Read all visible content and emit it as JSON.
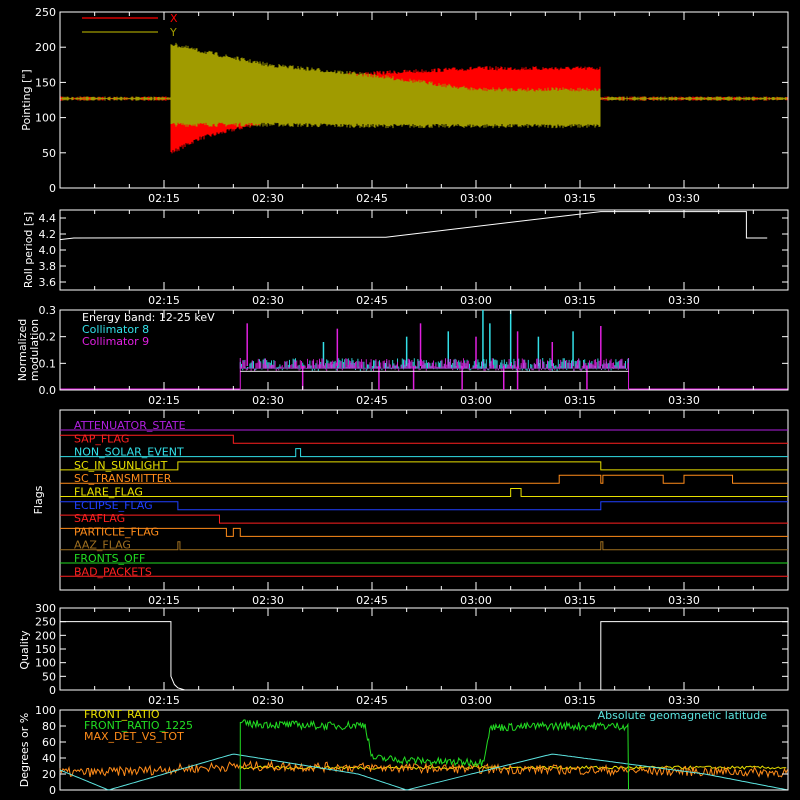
{
  "colors": {
    "background": "#000000",
    "axis": "#ffffff",
    "red": "#ff0000",
    "olive": "#a09b00",
    "cyan": "#33e0e8",
    "magenta": "#e020e0",
    "green": "#22dd22",
    "orange": "#ff8c1a",
    "purple": "#b020e0",
    "yellow": "#e8e000",
    "blue": "#2040ff",
    "brown": "#a07020",
    "lightcyan": "#5ce4e0",
    "white": "#ffffff"
  },
  "time_axis": {
    "start": "02:00",
    "end": "03:45",
    "ticks": [
      "02:15",
      "02:30",
      "02:45",
      "03:00",
      "03:15",
      "03:30"
    ]
  },
  "chart_data": [
    {
      "type": "line",
      "name": "pointing",
      "ylabel": "Pointing [\"]",
      "ylim": [
        0,
        250
      ],
      "yticks": [
        "0",
        "50",
        "100",
        "150",
        "200",
        "250"
      ],
      "series": [
        {
          "name": "X",
          "color": "#ff0000",
          "envelope": [
            [
              "02:00",
              127,
              127
            ],
            [
              "02:16",
              127,
              127
            ],
            [
              "02:16",
              50,
              165
            ],
            [
              "02:20",
              70,
              160
            ],
            [
              "02:30",
              95,
              158
            ],
            [
              "02:45",
              115,
              163
            ],
            [
              "03:00",
              125,
              170
            ],
            [
              "03:18",
              125,
              170
            ],
            [
              "03:18",
              127,
              127
            ],
            [
              "03:45",
              127,
              127
            ]
          ]
        },
        {
          "name": "Y",
          "color": "#a09b00",
          "envelope": [
            [
              "02:00",
              127,
              127
            ],
            [
              "02:16",
              127,
              127
            ],
            [
              "02:16",
              90,
              205
            ],
            [
              "02:20",
              90,
              195
            ],
            [
              "02:30",
              90,
              175
            ],
            [
              "02:45",
              88,
              160
            ],
            [
              "03:00",
              88,
              140
            ],
            [
              "03:18",
              88,
              140
            ],
            [
              "03:18",
              127,
              127
            ],
            [
              "03:45",
              127,
              127
            ]
          ]
        }
      ]
    },
    {
      "type": "line",
      "name": "roll-period",
      "ylabel": "Roll period [s]",
      "ylim": [
        3.5,
        4.5
      ],
      "yticks": [
        "3.6",
        "3.8",
        "4.0",
        "4.2",
        "4.4"
      ],
      "series": [
        {
          "name": "",
          "color": "#ffffff",
          "x": [
            "02:00",
            "02:02",
            "02:47",
            "03:18",
            "03:39",
            "03:39",
            "03:42"
          ],
          "y": [
            4.13,
            4.15,
            4.16,
            4.48,
            4.48,
            4.15,
            4.15
          ]
        }
      ]
    },
    {
      "type": "line",
      "name": "modulation",
      "ylabel": "Normalized modulation",
      "ylim": [
        0,
        0.3
      ],
      "yticks": [
        "0.0",
        "0.1",
        "0.2",
        "0.3"
      ],
      "annotation": "Energy band: 12-25 keV",
      "active_range": [
        "02:26",
        "03:22"
      ],
      "baseline": 0.09,
      "series": [
        {
          "name": "Collimator 8",
          "color": "#33e0e8",
          "spikes_x": [
            "02:38",
            "02:50",
            "02:56",
            "03:01",
            "03:02",
            "03:05",
            "03:09",
            "03:14"
          ],
          "spikes_y": [
            0.18,
            0.2,
            0.22,
            0.3,
            0.25,
            0.3,
            0.2,
            0.22
          ]
        },
        {
          "name": "Collimator 9",
          "color": "#e020e0",
          "spikes_x": [
            "02:27",
            "02:40",
            "02:52",
            "03:00",
            "03:06",
            "03:11",
            "03:18"
          ],
          "spikes_y": [
            0.25,
            0.23,
            0.25,
            0.2,
            0.22,
            0.18,
            0.24
          ],
          "drop_x": [
            "02:35",
            "02:46",
            "02:51",
            "02:58",
            "03:04",
            "03:06",
            "03:16"
          ]
        }
      ]
    },
    {
      "type": "line",
      "name": "flags",
      "ylabel": "Flags",
      "flags": [
        {
          "label": "ATTENUATOR_STATE",
          "color": "#b020e0",
          "steps": []
        },
        {
          "label": "SAP_FLAG",
          "color": "#ff2020",
          "steps": [
            [
              "02:00",
              1
            ],
            [
              "02:25",
              0
            ],
            [
              "03:45",
              0
            ]
          ]
        },
        {
          "label": "NON_SOLAR_EVENT",
          "color": "#33e0e8",
          "steps": [
            [
              "02:00",
              0
            ],
            [
              "02:34",
              1
            ],
            [
              "02:34.7",
              0
            ],
            [
              "03:45",
              0
            ]
          ]
        },
        {
          "label": "SC_IN_SUNLIGHT",
          "color": "#e8e000",
          "steps": [
            [
              "02:00",
              0
            ],
            [
              "02:17",
              1
            ],
            [
              "03:18",
              0
            ],
            [
              "03:45",
              0
            ]
          ]
        },
        {
          "label": "SC_TRANSMITTER",
          "color": "#ff8c1a",
          "steps": [
            [
              "02:00",
              0
            ],
            [
              "03:12",
              1
            ],
            [
              "03:18",
              0
            ],
            [
              "03:18.3",
              1
            ],
            [
              "03:27",
              0
            ],
            [
              "03:30",
              1
            ],
            [
              "03:37",
              0
            ],
            [
              "03:45",
              0
            ]
          ]
        },
        {
          "label": "FLARE_FLAG",
          "color": "#e8e000",
          "steps": [
            [
              "02:00",
              0
            ],
            [
              "03:05",
              1
            ],
            [
              "03:06.5",
              0
            ],
            [
              "03:45",
              0
            ]
          ]
        },
        {
          "label": "ECLIPSE_FLAG",
          "color": "#2040ff",
          "steps": [
            [
              "02:00",
              1
            ],
            [
              "02:17",
              0
            ],
            [
              "03:18",
              1
            ],
            [
              "03:45",
              1
            ]
          ]
        },
        {
          "label": "SAAFLAG",
          "color": "#ff2020",
          "steps": [
            [
              "02:00",
              1
            ],
            [
              "02:23",
              0
            ],
            [
              "03:45",
              0
            ]
          ]
        },
        {
          "label": "PARTICLE_FLAG",
          "color": "#ff8c1a",
          "steps": [
            [
              "02:00",
              1
            ],
            [
              "02:24",
              0
            ],
            [
              "02:25",
              1
            ],
            [
              "02:26",
              0
            ],
            [
              "03:45",
              0
            ]
          ]
        },
        {
          "label": "AAZ_FLAG",
          "color": "#a07020",
          "steps": [
            [
              "02:00",
              0
            ],
            [
              "02:17",
              1
            ],
            [
              "02:17.3",
              0
            ],
            [
              "03:18",
              1
            ],
            [
              "03:18.3",
              0
            ],
            [
              "03:45",
              0
            ]
          ]
        },
        {
          "label": "FRONTS_OFF",
          "color": "#22dd22",
          "steps": []
        },
        {
          "label": "BAD_PACKETS",
          "color": "#ff2020",
          "steps": []
        }
      ]
    },
    {
      "type": "line",
      "name": "quality",
      "ylabel": "Quality",
      "ylim": [
        0,
        300
      ],
      "yticks": [
        "0",
        "50",
        "100",
        "150",
        "200",
        "250",
        "300"
      ],
      "series": [
        {
          "name": "",
          "color": "#ffffff",
          "x": [
            "02:00",
            "02:16",
            "02:16",
            "02:16.5",
            "02:17",
            "02:18",
            "03:18",
            "03:18",
            "03:45"
          ],
          "y": [
            250,
            250,
            50,
            20,
            8,
            0,
            0,
            250,
            250
          ]
        }
      ]
    },
    {
      "type": "line",
      "name": "ratios",
      "ylabel": "Degrees or %",
      "ylim": [
        0,
        100
      ],
      "yticks": [
        "0",
        "20",
        "40",
        "60",
        "80",
        "100"
      ],
      "series": [
        {
          "name": "FRONT_RATIO",
          "color": "#e8e000",
          "level": 28,
          "range": [
            "02:26",
            "03:45"
          ]
        },
        {
          "name": "FRONT_RATIO_1225",
          "color": "#22dd22",
          "range": [
            "02:26",
            "03:22"
          ],
          "x": [
            "02:26",
            "02:40",
            "02:44",
            "02:45",
            "02:55",
            "03:01",
            "03:02",
            "03:10",
            "03:21"
          ],
          "y": [
            83,
            80,
            82,
            40,
            35,
            35,
            78,
            80,
            80
          ]
        },
        {
          "name": "MAX_DET_VS_TOT",
          "color": "#ff8c1a",
          "range": [
            "02:00",
            "03:45"
          ],
          "x": [
            "02:00",
            "02:06",
            "02:26",
            "03:45"
          ],
          "y": [
            22,
            22,
            30,
            22
          ]
        },
        {
          "name": "Absolute geomagnetic latitude",
          "color": "#5ce4e0",
          "x": [
            "02:00",
            "02:07",
            "02:25",
            "02:43",
            "02:50",
            "03:11",
            "03:33",
            "03:45"
          ],
          "y": [
            25,
            0,
            45,
            20,
            0,
            45,
            20,
            0
          ]
        }
      ]
    }
  ]
}
